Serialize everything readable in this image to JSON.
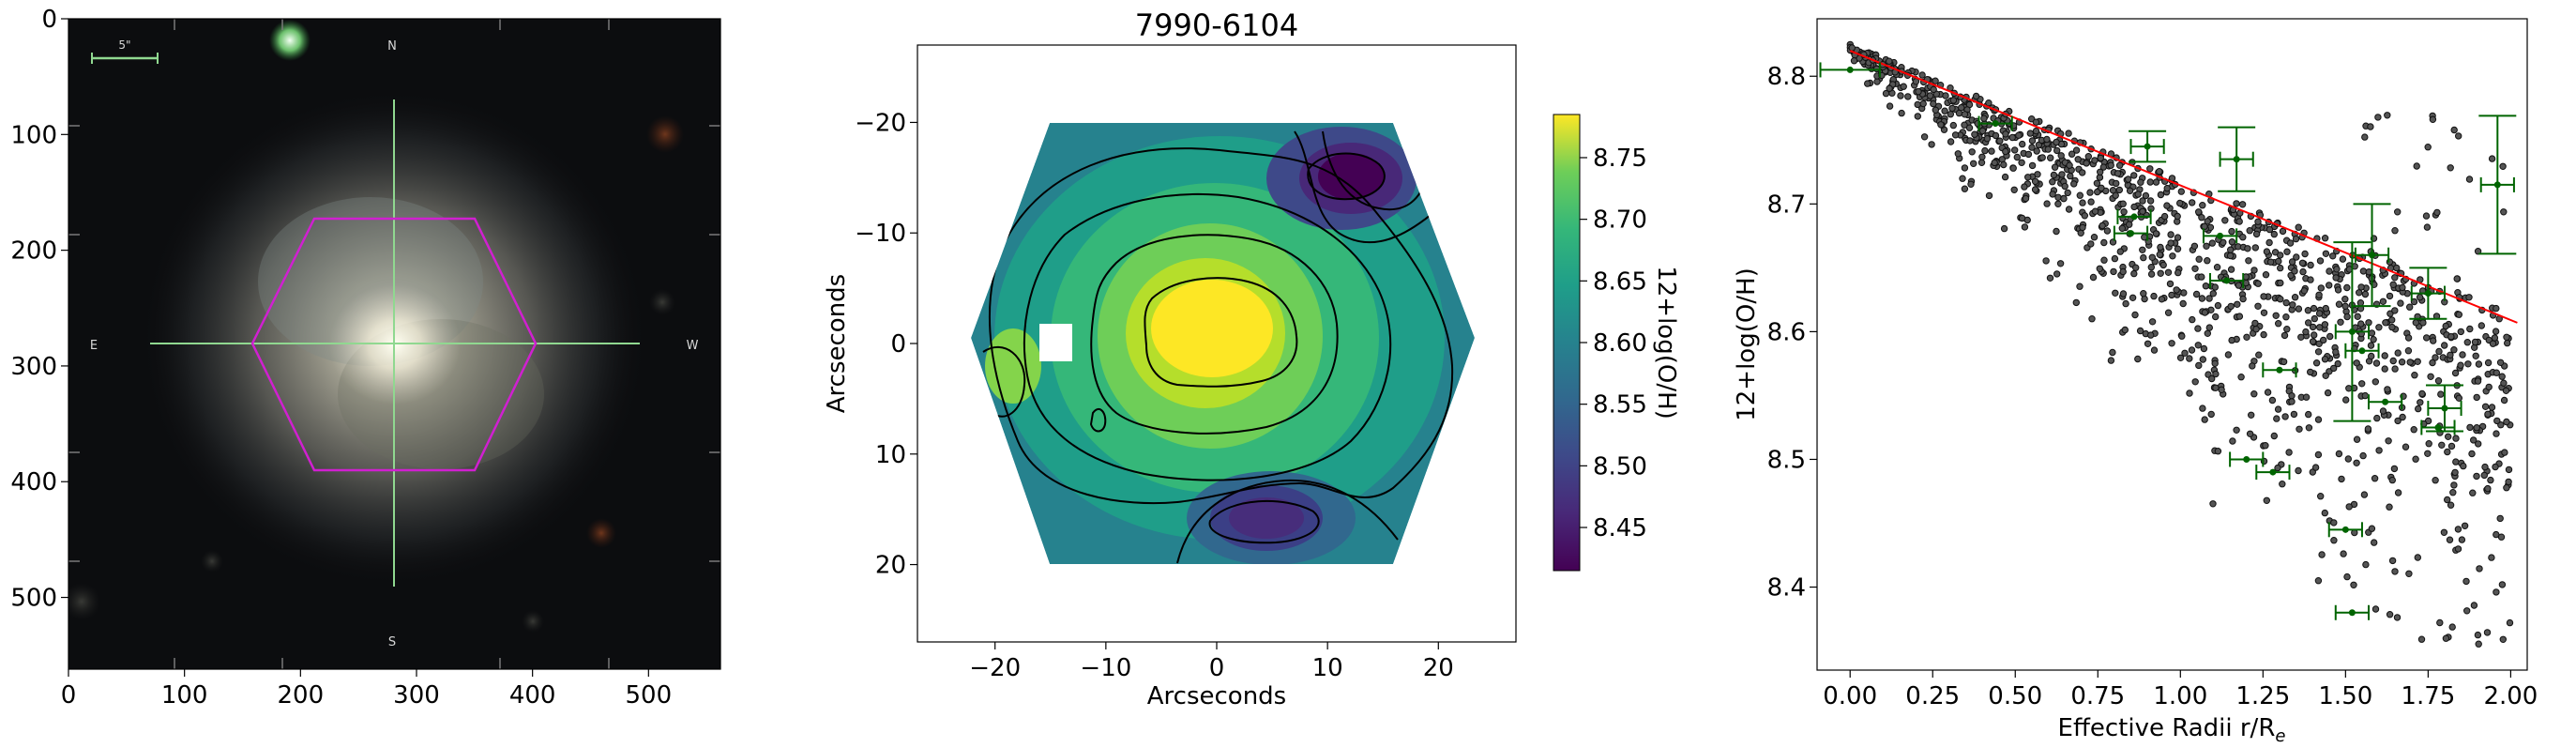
{
  "chart_data": [
    {
      "type": "image",
      "panel": "galaxy-image",
      "xticks": [
        "0",
        "100",
        "200",
        "300",
        "400",
        "500"
      ],
      "yticks": [
        "0",
        "100",
        "200",
        "300",
        "400",
        "500"
      ],
      "xlim": [
        0,
        562
      ],
      "ylim": [
        562,
        0
      ],
      "annotations": {
        "north": "N",
        "south": "S",
        "east": "E",
        "west": "W",
        "scale": "5\""
      },
      "colors": {
        "hexagon": "#d020d0",
        "crosshair": "#90d890",
        "sky": "#0c0d0f"
      }
    },
    {
      "type": "heatmap",
      "panel": "metallicity-map",
      "title": "7990-6104",
      "xlabel": "Arcseconds",
      "ylabel": "Arcseconds",
      "xlim": [
        -27,
        27
      ],
      "ylim": [
        27,
        -27
      ],
      "xticks": [
        "−20",
        "−10",
        "0",
        "10",
        "20"
      ],
      "yticks": [
        "−20",
        "−10",
        "0",
        "10",
        "20"
      ],
      "colorbar": {
        "label": "12+log(O/H)",
        "range": [
          8.415,
          8.785
        ],
        "ticks": [
          "8.75",
          "8.70",
          "8.65",
          "8.60",
          "8.55",
          "8.50",
          "8.45"
        ],
        "colormap": "viridis"
      },
      "contour_levels": [
        8.5,
        8.55,
        8.6,
        8.65,
        8.7,
        8.75
      ],
      "colors": {
        "contour": "#000000"
      }
    },
    {
      "type": "scatter",
      "panel": "gradient",
      "xlabel": "Effective Radii r/R",
      "xlabel_sub": "e",
      "ylabel": "12+log(O/H)",
      "xlim": [
        -0.1,
        2.05
      ],
      "ylim": [
        8.335,
        8.845
      ],
      "xticks": [
        "0.00",
        "0.25",
        "0.50",
        "0.75",
        "1.00",
        "1.25",
        "1.50",
        "1.75",
        "2.00"
      ],
      "yticks": [
        "8.4",
        "8.5",
        "8.6",
        "8.7",
        "8.8"
      ],
      "fit_line": {
        "x": [
          0.0,
          2.02
        ],
        "y": [
          8.82,
          8.607
        ]
      },
      "binned": [
        {
          "x": 0.0,
          "y": 8.805,
          "xerr": 0.09
        },
        {
          "x": 0.44,
          "y": 8.763,
          "xerr": 0.05
        },
        {
          "x": 0.85,
          "y": 8.677,
          "xerr": 0.05
        },
        {
          "x": 0.86,
          "y": 8.69,
          "xerr": 0.05
        },
        {
          "x": 0.9,
          "y": 8.745,
          "yerr": 0.012,
          "xerr": 0.05
        },
        {
          "x": 1.17,
          "y": 8.735,
          "yerr": 0.025,
          "xerr": 0.05
        },
        {
          "x": 1.12,
          "y": 8.675,
          "xerr": 0.05
        },
        {
          "x": 1.14,
          "y": 8.64,
          "xerr": 0.05
        },
        {
          "x": 1.2,
          "y": 8.5,
          "xerr": 0.05
        },
        {
          "x": 1.28,
          "y": 8.49,
          "xerr": 0.05
        },
        {
          "x": 1.3,
          "y": 8.57,
          "xerr": 0.05
        },
        {
          "x": 1.5,
          "y": 8.445,
          "xerr": 0.05
        },
        {
          "x": 1.52,
          "y": 8.38,
          "xerr": 0.05
        },
        {
          "x": 1.52,
          "y": 8.6,
          "yerr": 0.07,
          "xerr": 0.05
        },
        {
          "x": 1.55,
          "y": 8.585,
          "xerr": 0.05
        },
        {
          "x": 1.58,
          "y": 8.66,
          "yerr": 0.04,
          "xerr": 0.05
        },
        {
          "x": 1.62,
          "y": 8.545,
          "xerr": 0.05
        },
        {
          "x": 1.75,
          "y": 8.63,
          "yerr": 0.02,
          "xerr": 0.05
        },
        {
          "x": 1.78,
          "y": 8.525,
          "xerr": 0.05
        },
        {
          "x": 1.8,
          "y": 8.54,
          "yerr": 0.018,
          "xerr": 0.05
        },
        {
          "x": 1.96,
          "y": 8.715,
          "yerr": 0.054,
          "xerr": 0.05
        }
      ],
      "colors": {
        "points": "#2b2b2b",
        "fit": "#ff0000",
        "errorbars": "#006400"
      }
    }
  ]
}
